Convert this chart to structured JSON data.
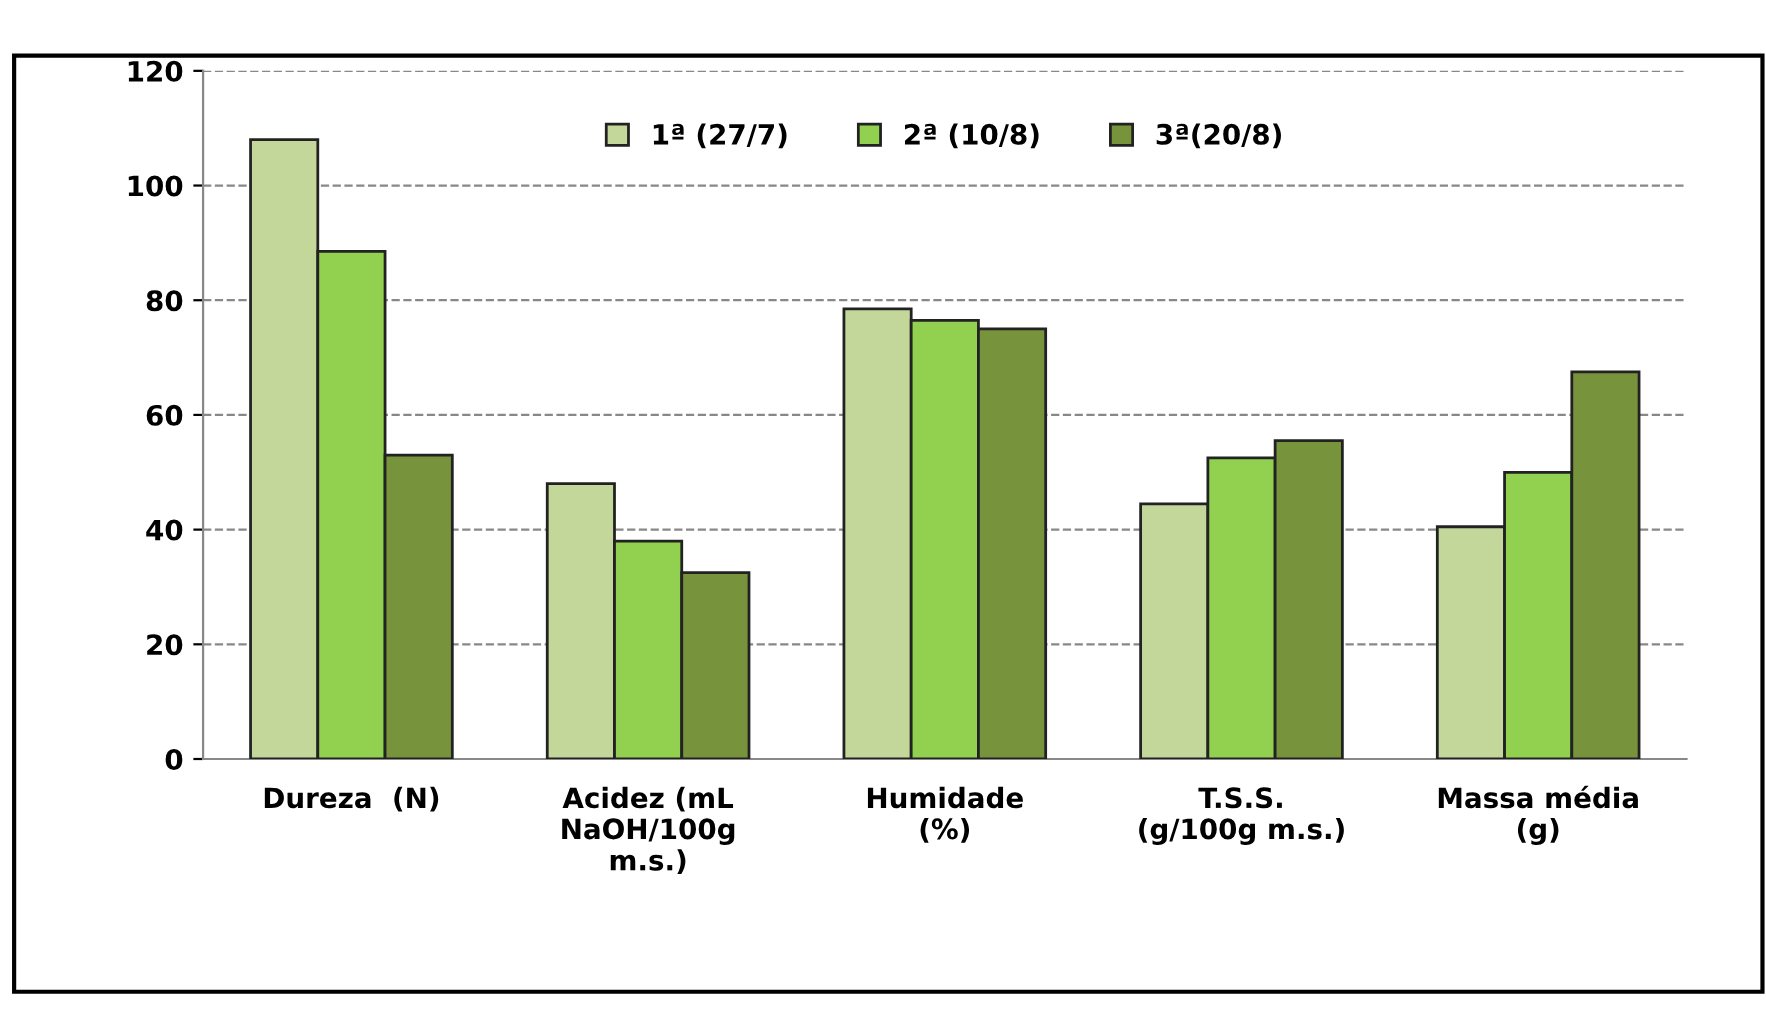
{
  "chart_data": {
    "type": "bar",
    "categories": [
      "Dureza  (N)",
      "Acidez (mL\nNaOH/100g\nm.s.)",
      "Humidade\n(%)",
      "T.S.S.\n(g/100g m.s.)",
      "Massa média\n(g)"
    ],
    "series": [
      {
        "name": "1ª (27/7)",
        "color": "#c4d79b",
        "values": [
          108,
          48,
          78.5,
          44.5,
          40.5
        ]
      },
      {
        "name": "2ª (10/8)",
        "color": "#92d050",
        "values": [
          88.5,
          38,
          76.5,
          52.5,
          50
        ]
      },
      {
        "name": "3ª(20/8)",
        "color": "#77933c",
        "values": [
          53,
          32.5,
          75,
          55.5,
          67.5
        ]
      }
    ],
    "ylim": [
      0,
      120
    ],
    "yticks": [
      0,
      20,
      40,
      60,
      80,
      100,
      120
    ],
    "grid": "y",
    "legend": "top"
  }
}
